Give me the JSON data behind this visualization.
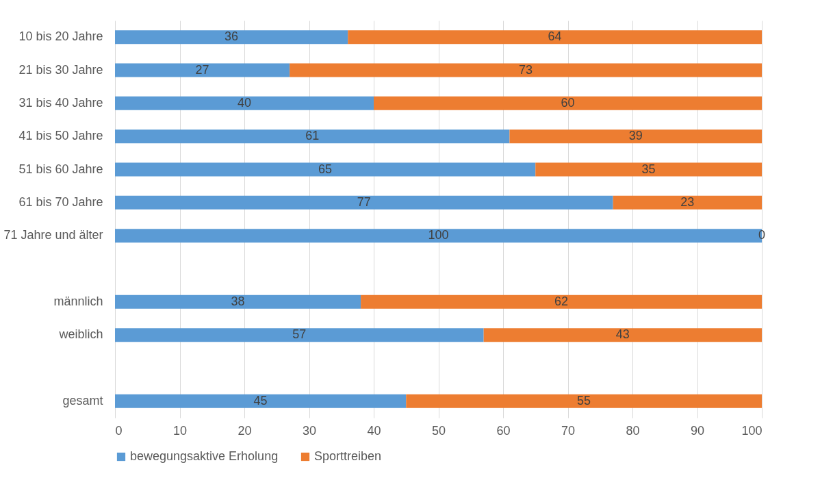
{
  "chart_data": {
    "type": "bar",
    "orientation": "horizontal",
    "stacked": true,
    "categories": [
      "10 bis 20 Jahre",
      "21 bis 30 Jahre",
      "31 bis 40 Jahre",
      "41 bis 50 Jahre",
      "51 bis 60 Jahre",
      "61 bis 70 Jahre",
      "71 Jahre und älter",
      null,
      "männlich",
      "weiblich",
      null,
      "gesamt"
    ],
    "series": [
      {
        "name": "bewegungsaktive Erholung",
        "color": "#5b9bd5",
        "values": [
          36,
          27,
          40,
          61,
          65,
          77,
          100,
          null,
          38,
          57,
          null,
          45
        ]
      },
      {
        "name": "Sporttreiben",
        "color": "#ed7d31",
        "values": [
          64,
          73,
          60,
          39,
          35,
          23,
          0,
          null,
          62,
          43,
          null,
          55
        ]
      }
    ],
    "xlim": [
      0,
      100
    ],
    "xticks": [
      0,
      10,
      20,
      30,
      40,
      50,
      60,
      70,
      80,
      90,
      100
    ],
    "grid": "x",
    "legend": "bottom",
    "data_labels": true
  }
}
